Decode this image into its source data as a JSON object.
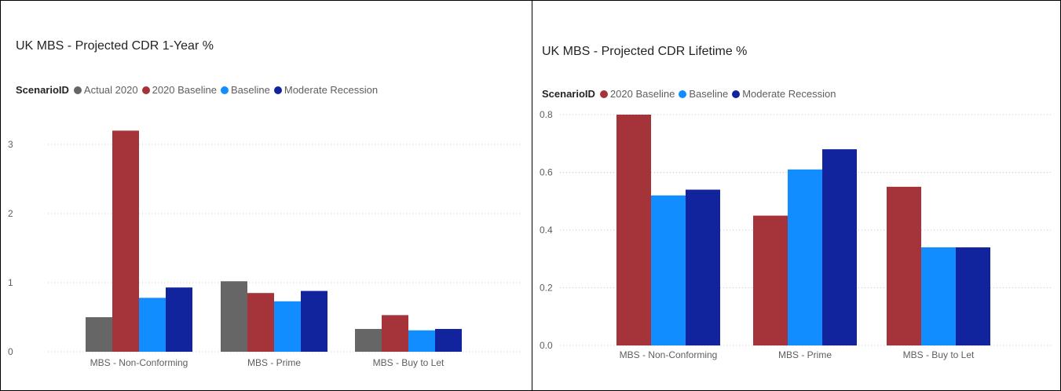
{
  "colors": {
    "Actual 2020": "#666666",
    "2020 Baseline": "#a4343a",
    "Baseline": "#118dff",
    "Moderate Recession": "#12239e"
  },
  "chart_data": [
    {
      "type": "bar",
      "title": "UK MBS - Projected CDR 1-Year %",
      "legend_title": "ScenarioID",
      "legend_position": "top-left",
      "categories": [
        "MBS - Non-Conforming",
        "MBS - Prime",
        "MBS - Buy to Let"
      ],
      "series": [
        {
          "name": "Actual 2020",
          "values": [
            0.5,
            1.02,
            0.33
          ]
        },
        {
          "name": "2020 Baseline",
          "values": [
            3.2,
            0.85,
            0.53
          ]
        },
        {
          "name": "Baseline",
          "values": [
            0.78,
            0.73,
            0.31
          ]
        },
        {
          "name": "Moderate Recession",
          "values": [
            0.93,
            0.88,
            0.33
          ]
        }
      ],
      "yticks": [
        "0",
        "1",
        "2",
        "3"
      ],
      "ylim": [
        0,
        3.0
      ],
      "grid": true
    },
    {
      "type": "bar",
      "title": "UK MBS - Projected CDR Lifetime %",
      "legend_title": "ScenarioID",
      "legend_position": "top-left",
      "categories": [
        "MBS - Non-Conforming",
        "MBS - Prime",
        "MBS - Buy to Let"
      ],
      "series": [
        {
          "name": "2020 Baseline",
          "values": [
            0.8,
            0.45,
            0.55
          ]
        },
        {
          "name": "Baseline",
          "values": [
            0.52,
            0.61,
            0.34
          ]
        },
        {
          "name": "Moderate Recession",
          "values": [
            0.54,
            0.68,
            0.34
          ]
        }
      ],
      "yticks": [
        "0.0",
        "0.2",
        "0.4",
        "0.6",
        "0.8"
      ],
      "ylim": [
        0,
        0.8
      ],
      "grid": true
    }
  ]
}
